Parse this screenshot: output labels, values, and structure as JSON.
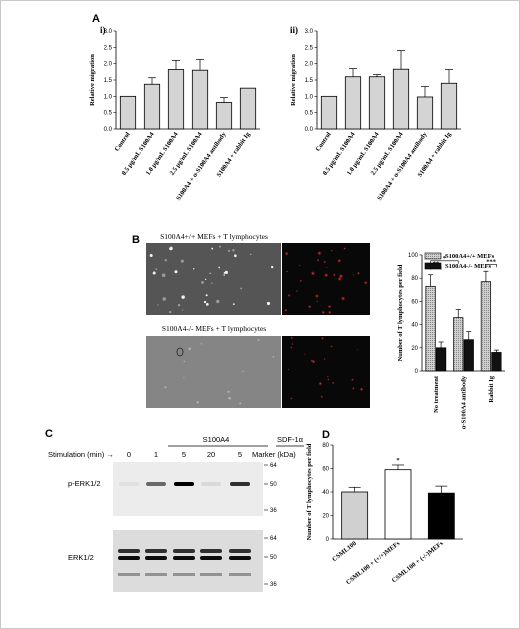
{
  "panel_labels": {
    "A": "A",
    "B": "B",
    "C": "C",
    "D": "D"
  },
  "panel_a": {
    "i_label": "i)",
    "ii_label": "ii)"
  },
  "panel_b": {
    "micrograph_top_caption": "S100A4+/+ MEFs + T lymphocytes",
    "micrograph_bottom_caption": "S100A4-/- MEFs + T lymphocytes"
  },
  "panel_c": {
    "header_s100a4": "S100A4",
    "header_sdf": "SDF-1α",
    "stimulation_label": "Stimulation (min) →",
    "lanes": [
      "0",
      "1",
      "5",
      "20",
      "5"
    ],
    "marker_label": "Marker (kDa)",
    "blot_top_label": "p-ERK1/2",
    "blot_bottom_label": "ERK1/2",
    "top_markers": [
      "64",
      "50",
      "36"
    ],
    "bottom_markers": [
      "64",
      "50",
      "36"
    ]
  },
  "chart_data": [
    {
      "id": "A-i",
      "type": "bar",
      "categories": [
        "Control",
        "0.5 µg/mL S100A4",
        "1.0 µg/mL S100A4",
        "2.5 µg/mL S100A4",
        "S100A4 + α-S100A4 antibody",
        "S100A4 + rabbit Ig"
      ],
      "values": [
        1.0,
        1.37,
        1.82,
        1.8,
        0.81,
        1.25
      ],
      "errors": [
        0,
        0.2,
        0.28,
        0.33,
        0.15,
        0
      ],
      "ylabel": "Relative migration",
      "ylim": [
        0,
        3.0
      ],
      "yticks": [
        "0.0",
        "0.5",
        "1.0",
        "1.5",
        "2.0",
        "2.5",
        "3.0"
      ],
      "color": "#d4d4d4"
    },
    {
      "id": "A-ii",
      "type": "bar",
      "categories": [
        "Control",
        "0.5 µg/mL S100A4",
        "1.0 µg/mL S100A4",
        "2.5 µg/mL S100A4",
        "S100A4 + α-S100A4 antibody",
        "S100A4 + rabbit Ig"
      ],
      "values": [
        1.0,
        1.6,
        1.6,
        1.83,
        0.98,
        1.4
      ],
      "errors": [
        0,
        0.25,
        0.07,
        0.57,
        0.32,
        0.42
      ],
      "ylabel": "Relative migration",
      "ylim": [
        0,
        3.0
      ],
      "yticks": [
        "0.0",
        "0.5",
        "1.0",
        "1.5",
        "2.0",
        "2.5",
        "3.0"
      ],
      "color": "#d4d4d4"
    },
    {
      "id": "B",
      "type": "bar",
      "categories": [
        "No treatment",
        "α-S100A4 antibody",
        "Rabbit Ig"
      ],
      "series": [
        {
          "name": "S100A4+/+ MEFs",
          "values": [
            73,
            46,
            77
          ],
          "errors": [
            10,
            7,
            9
          ],
          "color": "#b8b8b8"
        },
        {
          "name": "S100A4-/- MEFs",
          "values": [
            20,
            27,
            16
          ],
          "errors": [
            5,
            7,
            2
          ],
          "color": "#111111"
        }
      ],
      "ylabel": "Number of T lymphocytes per field",
      "ylim": [
        0,
        100
      ],
      "yticks": [
        "0",
        "20",
        "40",
        "60",
        "80",
        "100"
      ],
      "significance": [
        "**",
        "*",
        "***"
      ],
      "legend": "top-right"
    },
    {
      "id": "D",
      "type": "bar",
      "categories": [
        "CSML100",
        "CSML100 + (+/+)MEFs",
        "CSML100 + (-/-)MEFs"
      ],
      "values": [
        40,
        59,
        39
      ],
      "errors": [
        4,
        4,
        6
      ],
      "colors": [
        "#d0d0d0",
        "#ffffff",
        "#000000"
      ],
      "ylabel": "Number of T lymphocytes per field",
      "ylim": [
        0,
        80
      ],
      "yticks": [
        "0",
        "20",
        "40",
        "60",
        "80"
      ],
      "significance": [
        "",
        "*",
        ""
      ]
    }
  ]
}
